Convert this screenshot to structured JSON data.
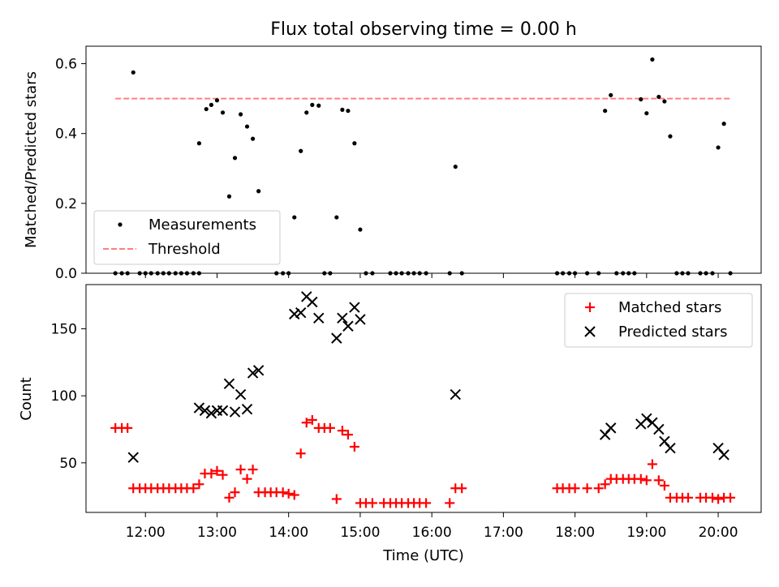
{
  "chart_data": [
    {
      "type": "scatter",
      "title": "Flux total observing time = 0.00 h",
      "ylabel": "Matched/Predicted stars",
      "ylim": [
        0,
        0.65
      ],
      "xlim": [
        11.17,
        20.6
      ],
      "yticks": [
        0.0,
        0.2,
        0.4,
        0.6
      ],
      "ytick_labels": [
        "0.0",
        "0.2",
        "0.4",
        "0.6"
      ],
      "legend_position": "lower-left",
      "series": [
        {
          "name": "Measurements",
          "marker": "dot",
          "color": "#000000",
          "x": [
            11.83,
            12.75,
            12.85,
            12.92,
            13.0,
            13.08,
            13.17,
            13.25,
            13.33,
            13.42,
            13.5,
            13.58,
            14.08,
            14.17,
            14.25,
            14.33,
            14.42,
            14.67,
            14.75,
            14.83,
            14.92,
            15.0,
            16.33,
            18.42,
            18.5,
            18.92,
            19.0,
            19.08,
            19.17,
            19.25,
            19.33,
            20.0,
            20.08
          ],
          "y": [
            0.575,
            0.372,
            0.47,
            0.482,
            0.495,
            0.46,
            0.22,
            0.33,
            0.455,
            0.42,
            0.385,
            0.235,
            0.16,
            0.35,
            0.46,
            0.482,
            0.48,
            0.16,
            0.468,
            0.465,
            0.372,
            0.125,
            0.305,
            0.465,
            0.51,
            0.498,
            0.458,
            0.612,
            0.505,
            0.492,
            0.392,
            0.36,
            0.428
          ],
          "zero_x": [
            11.58,
            11.67,
            11.75,
            11.92,
            12.0,
            12.08,
            12.17,
            12.25,
            12.33,
            12.42,
            12.5,
            12.58,
            12.67,
            12.75,
            13.83,
            13.92,
            14.0,
            14.5,
            14.58,
            15.08,
            15.17,
            15.42,
            15.5,
            15.58,
            15.67,
            15.75,
            15.83,
            15.92,
            16.25,
            16.42,
            17.75,
            17.83,
            17.92,
            18.0,
            18.17,
            18.33,
            18.58,
            18.67,
            18.75,
            18.83,
            19.42,
            19.5,
            19.58,
            19.75,
            19.83,
            19.92,
            20.17
          ]
        },
        {
          "name": "Threshold",
          "style": "dashed",
          "color": "#ff7f7f",
          "x": [
            11.58,
            20.17
          ],
          "y": [
            0.5,
            0.5
          ]
        }
      ]
    },
    {
      "type": "scatter",
      "xlabel": "Time (UTC)",
      "ylabel": "Count",
      "ylim": [
        13,
        183
      ],
      "xlim": [
        11.17,
        20.6
      ],
      "xticks": [
        12,
        13,
        14,
        15,
        16,
        17,
        18,
        19,
        20
      ],
      "xtick_labels": [
        "12:00",
        "13:00",
        "14:00",
        "15:00",
        "16:00",
        "17:00",
        "18:00",
        "19:00",
        "20:00"
      ],
      "yticks": [
        50,
        100,
        150
      ],
      "ytick_labels": [
        "50",
        "100",
        "150"
      ],
      "legend_position": "upper-right",
      "series": [
        {
          "name": "Matched stars",
          "marker": "plus",
          "color": "#ff0000",
          "x": [
            11.58,
            11.67,
            11.75,
            11.83,
            11.92,
            12.0,
            12.08,
            12.17,
            12.25,
            12.33,
            12.42,
            12.5,
            12.58,
            12.67,
            12.75,
            12.83,
            12.92,
            13.0,
            13.08,
            13.17,
            13.25,
            13.33,
            13.42,
            13.5,
            13.58,
            13.67,
            13.75,
            13.83,
            13.92,
            14.0,
            14.08,
            14.17,
            14.25,
            14.33,
            14.42,
            14.5,
            14.58,
            14.67,
            14.75,
            14.83,
            14.92,
            15.0,
            15.08,
            15.17,
            15.33,
            15.42,
            15.5,
            15.58,
            15.67,
            15.75,
            15.83,
            15.92,
            16.25,
            16.33,
            16.42,
            17.75,
            17.83,
            17.92,
            18.0,
            18.17,
            18.33,
            18.42,
            18.5,
            18.58,
            18.67,
            18.75,
            18.83,
            18.92,
            19.0,
            19.08,
            19.17,
            19.25,
            19.33,
            19.42,
            19.5,
            19.58,
            19.75,
            19.83,
            19.92,
            20.0,
            20.08,
            20.17
          ],
          "y": [
            76,
            76,
            76,
            31,
            31,
            31,
            31,
            31,
            31,
            31,
            31,
            31,
            31,
            31,
            34,
            42,
            42,
            44,
            41,
            24,
            28,
            45,
            38,
            45,
            28,
            28,
            28,
            28,
            28,
            27,
            26,
            57,
            80,
            82,
            76,
            76,
            76,
            23,
            74,
            71,
            62,
            20,
            20,
            20,
            20,
            20,
            20,
            20,
            20,
            20,
            20,
            20,
            20,
            31,
            31,
            31,
            31,
            31,
            31,
            31,
            31,
            34,
            38,
            38,
            38,
            38,
            38,
            38,
            37,
            49,
            37,
            33,
            24,
            24,
            24,
            24,
            24,
            24,
            24,
            23,
            24,
            24
          ]
        },
        {
          "name": "Predicted stars",
          "marker": "x",
          "color": "#000000",
          "x": [
            11.83,
            12.75,
            12.83,
            12.92,
            13.0,
            13.08,
            13.17,
            13.25,
            13.33,
            13.42,
            13.5,
            13.58,
            14.08,
            14.17,
            14.25,
            14.33,
            14.42,
            14.67,
            14.75,
            14.83,
            14.92,
            15.0,
            16.33,
            18.42,
            18.5,
            18.92,
            19.0,
            19.08,
            19.17,
            19.25,
            19.33,
            20.0,
            20.08
          ],
          "y": [
            54,
            91,
            89,
            87,
            89,
            89,
            109,
            88,
            101,
            90,
            117,
            119,
            161,
            162,
            174,
            170,
            158,
            143,
            158,
            152,
            166,
            157,
            101,
            71,
            76,
            79,
            83,
            80,
            75,
            66,
            61,
            61,
            56
          ]
        }
      ]
    }
  ]
}
